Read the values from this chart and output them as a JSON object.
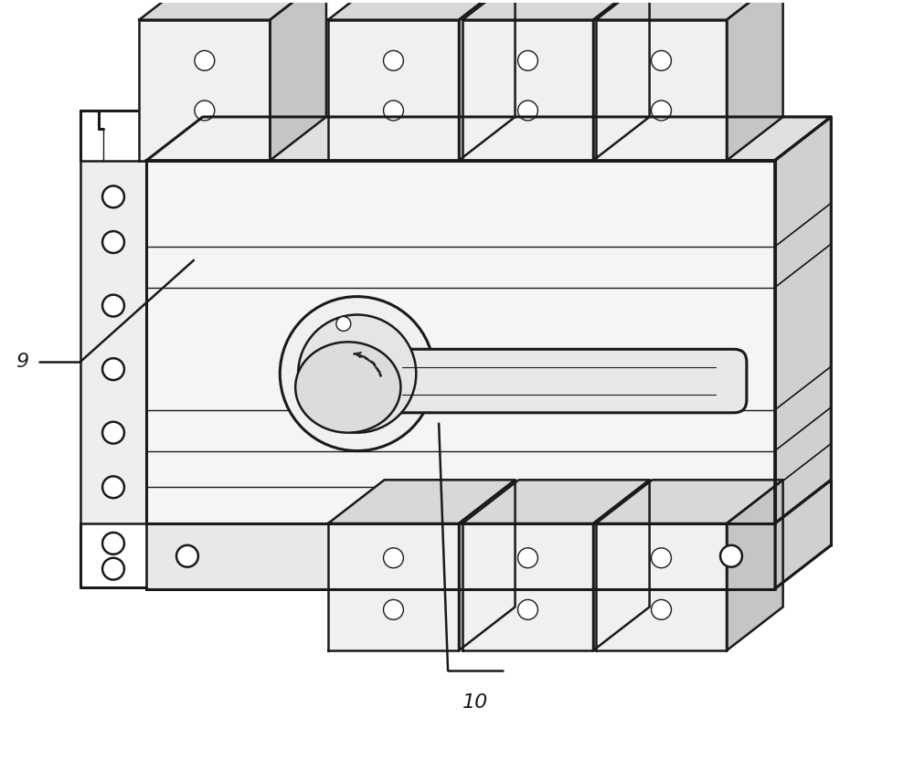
{
  "bg_color": "#ffffff",
  "line_color": "#1a1a1a",
  "lw": 1.8,
  "lw_thick": 2.2,
  "lw_thin": 1.0,
  "fig_width": 10.0,
  "fig_height": 8.44,
  "label_9": "9",
  "label_10": "10",
  "label_fontsize": 16,
  "face_color": "#f5f5f5",
  "top_color": "#e0e0e0",
  "side_color": "#d0d0d0",
  "term_face": "#eeeeee",
  "term_top": "#d8d8d8",
  "term_side": "#c8c8c8"
}
